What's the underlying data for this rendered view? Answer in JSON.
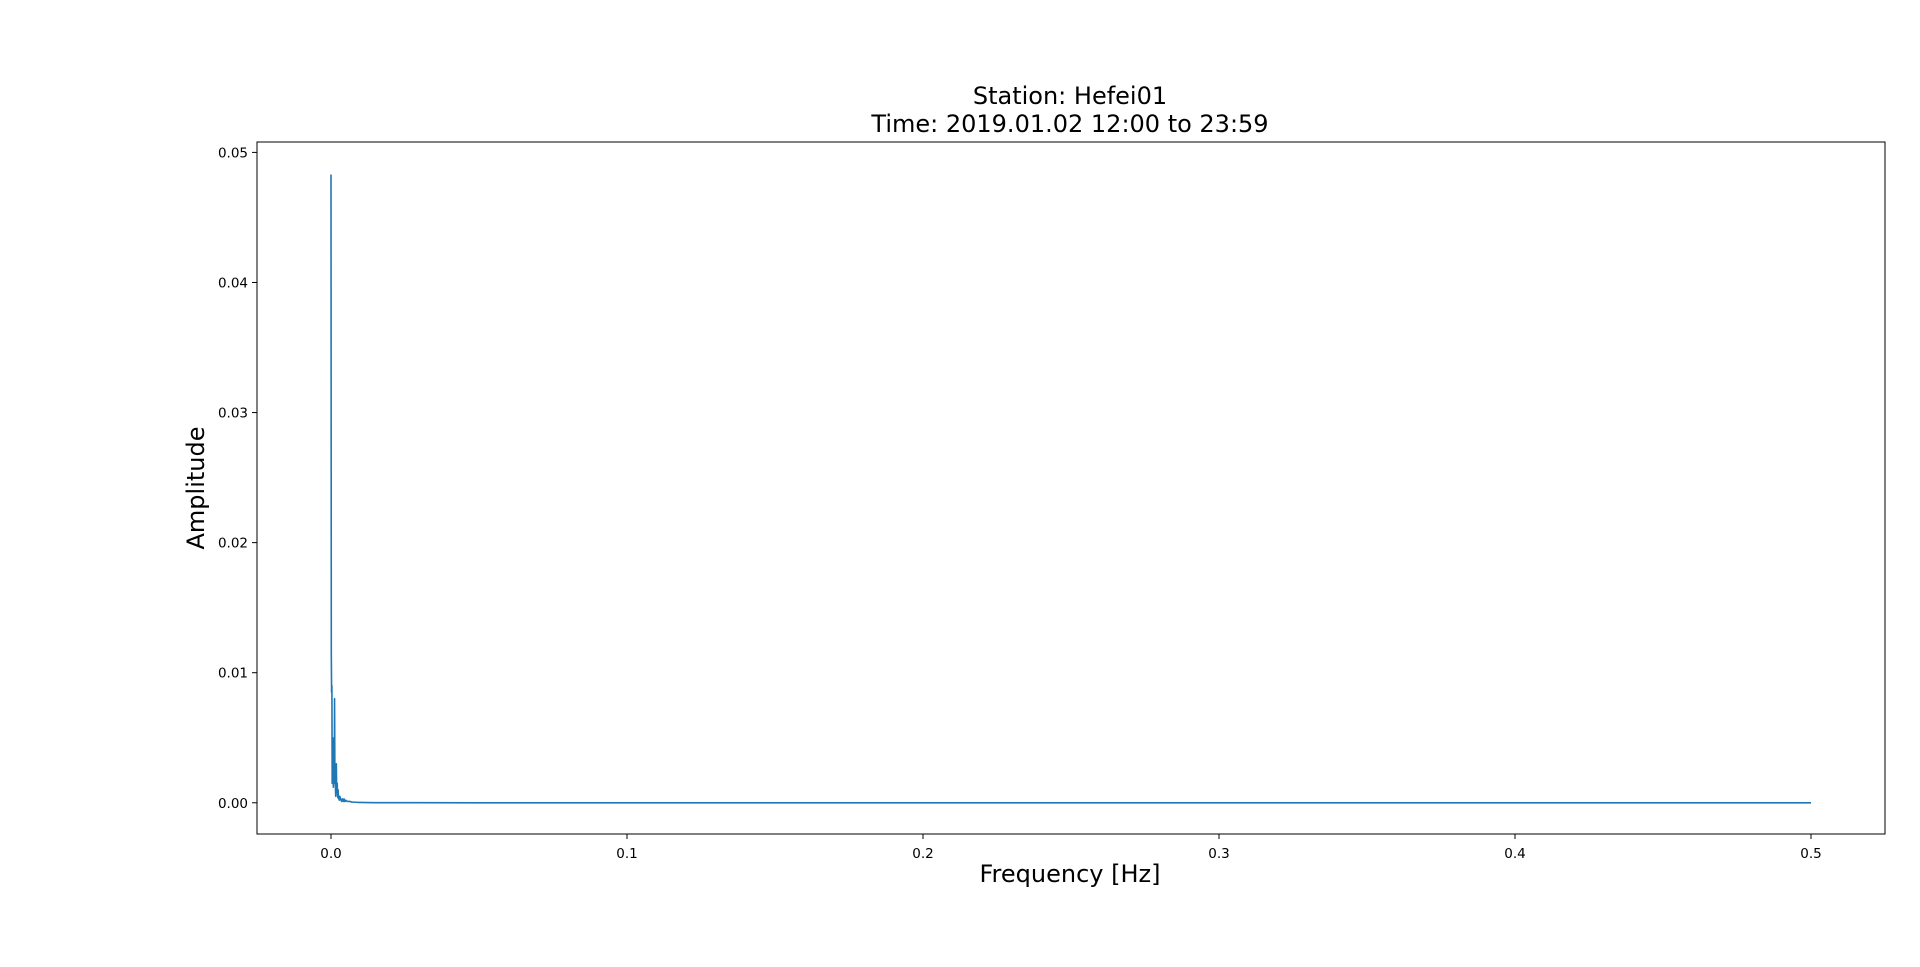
{
  "chart_data": {
    "type": "line",
    "title": "Station: Hefei01",
    "subtitle": "Time: 2019.01.02 12:00 to 23:59",
    "xlabel": "Frequency [Hz]",
    "ylabel": "Amplitude",
    "xlim": [
      -0.025,
      0.525
    ],
    "ylim": [
      -0.0024,
      0.0508
    ],
    "xticks": [
      0.0,
      0.1,
      0.2,
      0.3,
      0.4,
      0.5
    ],
    "xtick_labels": [
      "0.0",
      "0.1",
      "0.2",
      "0.3",
      "0.4",
      "0.5"
    ],
    "yticks": [
      0.0,
      0.01,
      0.02,
      0.03,
      0.04,
      0.05
    ],
    "ytick_labels": [
      "0.00",
      "0.01",
      "0.02",
      "0.03",
      "0.04",
      "0.05"
    ],
    "grid": false,
    "line_color": "#1f77b4",
    "series": [
      {
        "x": [
          0.0,
          0.0001,
          0.0002,
          0.0003,
          0.0004,
          0.0005,
          0.0006,
          0.0007,
          0.0008,
          0.0009,
          0.001,
          0.0011,
          0.0012,
          0.0013,
          0.0014,
          0.0015,
          0.0016,
          0.0017,
          0.0018,
          0.0019,
          0.002,
          0.0021,
          0.0022,
          0.0023,
          0.0024,
          0.0025,
          0.0026,
          0.0027,
          0.0028,
          0.003,
          0.0032,
          0.0034,
          0.0036,
          0.0038,
          0.004,
          0.0042,
          0.0044,
          0.0046,
          0.0048,
          0.005,
          0.0055,
          0.006,
          0.0065,
          0.007,
          0.008,
          0.009,
          0.01,
          0.012,
          0.015,
          0.02,
          0.03,
          0.05,
          0.1,
          0.2,
          0.3,
          0.4,
          0.5
        ],
        "y": [
          0.0483,
          0.0115,
          0.0085,
          0.009,
          0.0015,
          0.003,
          0.005,
          0.0022,
          0.0012,
          0.0025,
          0.0018,
          0.0015,
          0.008,
          0.0028,
          0.002,
          0.0012,
          0.0005,
          0.0022,
          0.003,
          0.0012,
          0.0008,
          0.0015,
          0.0006,
          0.0004,
          0.001,
          0.0005,
          0.0003,
          0.0004,
          0.0002,
          0.0005,
          0.0003,
          0.0002,
          0.0001,
          0.0003,
          0.0002,
          0.0001,
          0.0003,
          0.0001,
          0.0001,
          0.0002,
          0.0001,
          0.0001,
          0.0001,
          5e-05,
          5e-05,
          3e-05,
          3e-05,
          2e-05,
          1e-05,
          1e-05,
          5e-06,
          0.0,
          0.0,
          0.0,
          0.0,
          0.0,
          0.0
        ]
      }
    ]
  }
}
